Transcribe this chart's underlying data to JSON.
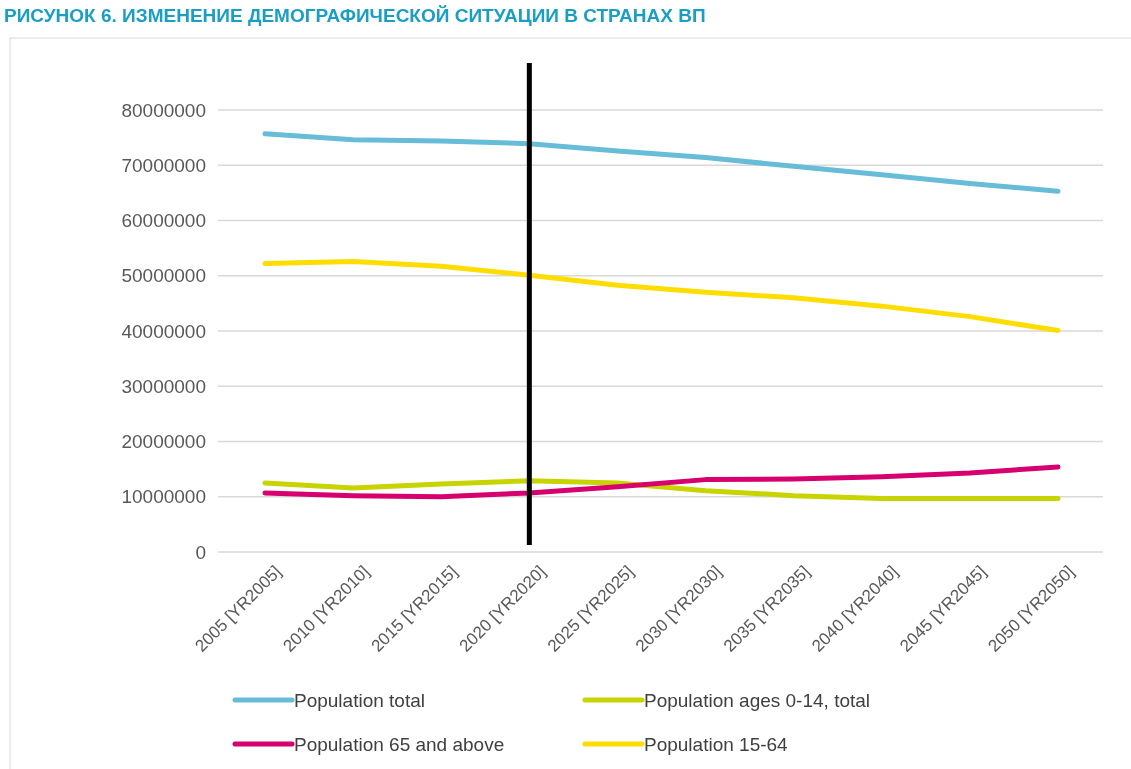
{
  "chart_data": {
    "type": "line",
    "title": "РИСУНОК 6. ИЗМЕНЕНИЕ ДЕМОГРАФИЧЕСКОЙ СИТУАЦИИ В СТРАНАХ ВП",
    "categories": [
      "2005 [YR2005]",
      "2010 [YR2010]",
      "2015 [YR2015]",
      "2020 [YR2020]",
      "2025 [YR2025]",
      "2030 [YR2030]",
      "2035 [YR2035]",
      "2040 [YR2040]",
      "2045 [YR2045]",
      "2050 [YR2050]"
    ],
    "series": [
      {
        "name": "Population total",
        "color": "#67bcd7",
        "values": [
          75700000,
          74600000,
          74400000,
          73900000,
          72600000,
          71400000,
          69800000,
          68300000,
          66700000,
          65300000
        ]
      },
      {
        "name": "Population ages 0-14, total",
        "color": "#c8d400",
        "values": [
          12500000,
          11600000,
          12300000,
          12900000,
          12500000,
          11100000,
          10200000,
          9700000,
          9700000,
          9700000
        ]
      },
      {
        "name": "Population 65 and above",
        "color": "#d6006e",
        "values": [
          10700000,
          10200000,
          10000000,
          10700000,
          11800000,
          13100000,
          13200000,
          13600000,
          14300000,
          15400000
        ]
      },
      {
        "name": "Population 15-64",
        "color": "#ffdd00",
        "values": [
          52200000,
          52600000,
          51700000,
          50100000,
          48300000,
          47000000,
          46000000,
          44500000,
          42600000,
          40100000
        ]
      }
    ],
    "ylim": [
      0,
      80000000
    ],
    "yticks": [
      0,
      10000000,
      20000000,
      30000000,
      40000000,
      50000000,
      60000000,
      70000000,
      80000000
    ],
    "grid": "y",
    "legend": "bottom",
    "marker": "none",
    "line_style": "solid",
    "ref_lines": [
      {
        "axis": "x",
        "value": "2020 [YR2020]",
        "color": "#000000"
      }
    ]
  }
}
